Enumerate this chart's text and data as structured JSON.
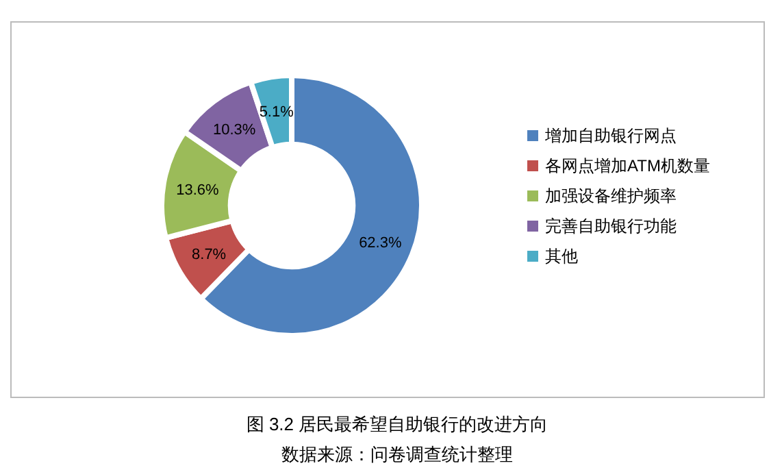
{
  "chart_data": {
    "type": "donut",
    "categories": [
      "增加自助银行网点",
      "各网点增加ATM机数量",
      "加强设备维护频率",
      "完善自助银行功能",
      "其他"
    ],
    "values": [
      62.3,
      8.7,
      13.6,
      10.3,
      5.1
    ],
    "colors": [
      "#4f81bd",
      "#c0504d",
      "#9bbb59",
      "#8064a2",
      "#4bacc6"
    ],
    "value_labels": [
      "62.3%",
      "8.7%",
      "13.6%",
      "10.3%",
      "5.1%"
    ],
    "legend": "right",
    "annotations": [
      "图 3.2 居民最希望自助银行的改进方向",
      "数据来源：问卷调查统计整理"
    ]
  }
}
